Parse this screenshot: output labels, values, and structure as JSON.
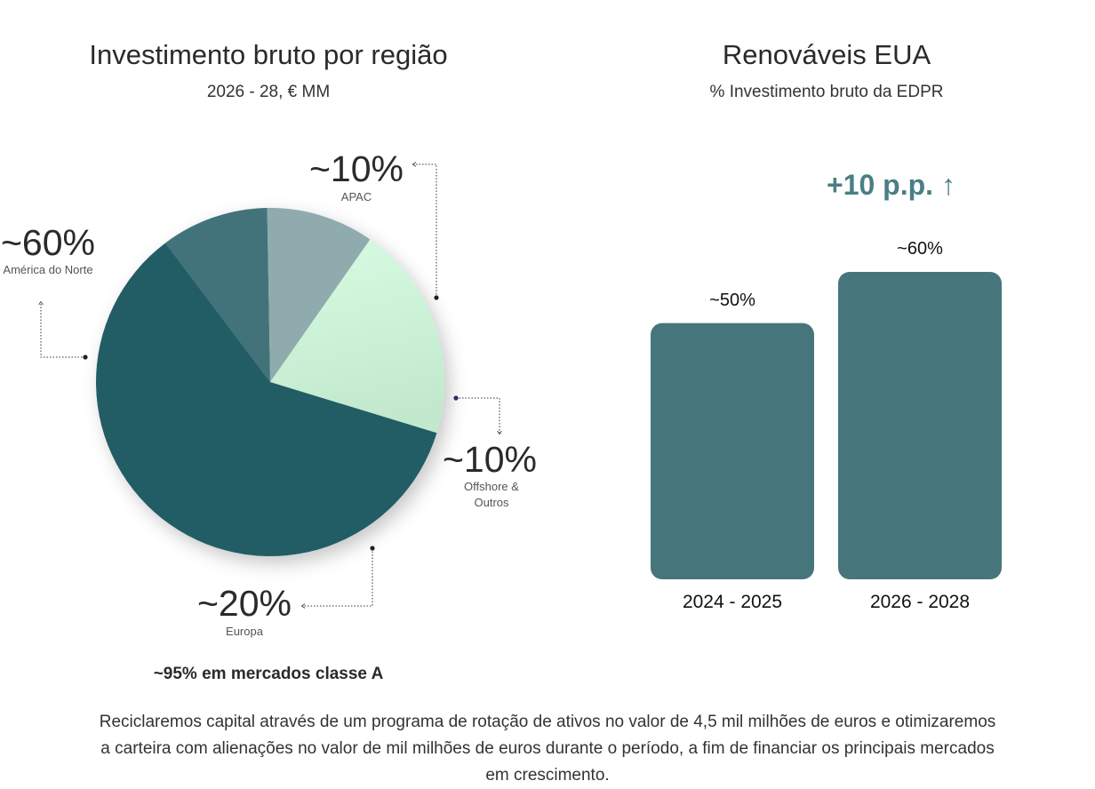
{
  "left_panel": {
    "title": "Investimento bruto por região",
    "subtitle": "2026 - 28, € MM",
    "footnote": "~95% em mercados classe A"
  },
  "right_panel": {
    "title": "Renováveis EUA",
    "subtitle": "% Investimento bruto da EDPR",
    "delta": "+10 p.p. ↑"
  },
  "paragraph": "Reciclaremos capital através de um programa de rotação de ativos no valor de 4,5 mil milhões de euros e otimizaremos a carteira com alienações no valor de mil milhões de euros durante o período, a fim de financiar os principais mercados em crescimento.",
  "chart_data": [
    {
      "type": "pie",
      "title": "Investimento bruto por região",
      "subtitle": "2026 - 28, € MM",
      "slices": [
        {
          "name": "América do Norte",
          "label": "~60%",
          "value": 60,
          "color": "#245d65"
        },
        {
          "name": "APAC",
          "label": "~10%",
          "value": 10,
          "color": "#42737a"
        },
        {
          "name": "Offshore & Outros",
          "label": "~10%",
          "value": 10,
          "color": "#8fabae"
        },
        {
          "name": "Europa",
          "label": "~20%",
          "value": 20,
          "color": "#cdf6da"
        }
      ]
    },
    {
      "type": "bar",
      "title": "Renováveis EUA",
      "subtitle": "% Investimento bruto da EDPR",
      "categories": [
        "2024 - 2025",
        "2026 - 2028"
      ],
      "values": [
        50,
        60
      ],
      "data_labels": [
        "~50%",
        "~60%"
      ],
      "color": "#46767c",
      "ylim": [
        0,
        60
      ]
    }
  ]
}
